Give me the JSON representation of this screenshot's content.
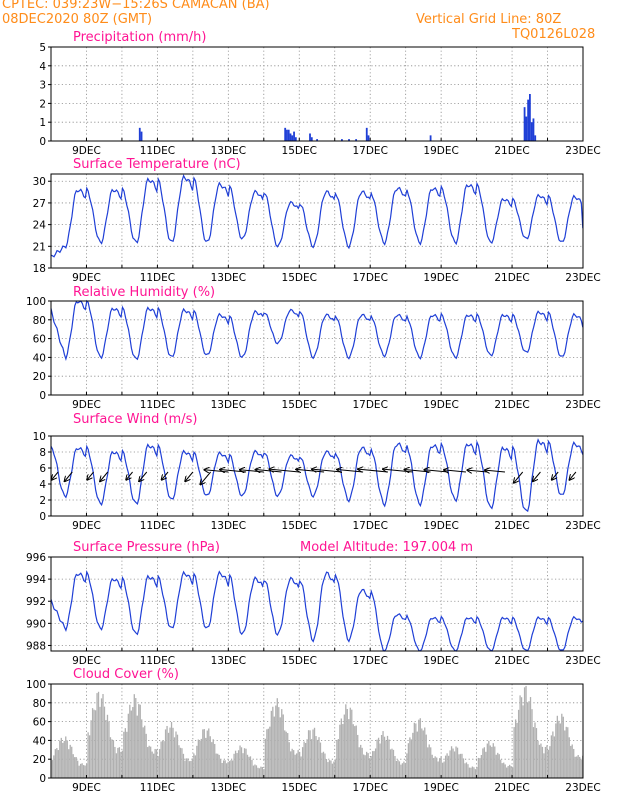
{
  "header": {
    "line1_left": "CPTEC:    039:23W−15:26S    CAMACAN (BA)",
    "line2_left": "08DEC2020 80Z (GMT)",
    "line1_right": "Vertical Grid Line: 80Z",
    "line2_right": "TQ0126L028"
  },
  "colors": {
    "header": "#ff8c1a",
    "panel_title": "#ff1493",
    "series": "#1f3fd6",
    "cloud": "#b0b0b0",
    "wind_arrow": "#000000"
  },
  "x_axis": {
    "labels": [
      "9DEC",
      "11DEC",
      "13DEC",
      "15DEC",
      "17DEC",
      "19DEC",
      "21DEC",
      "23DEC"
    ],
    "label_days": [
      9,
      11,
      13,
      15,
      17,
      19,
      21,
      23
    ],
    "range_days": [
      8,
      23
    ],
    "grid_every_days": 1
  },
  "chart_data": [
    {
      "type": "bar",
      "title": "Precipitation (mm/h)",
      "ylim": [
        0,
        5
      ],
      "yticks": [
        0,
        1,
        2,
        3,
        4,
        5
      ],
      "x": [
        10.5,
        10.55,
        14.6,
        14.65,
        14.7,
        14.75,
        14.8,
        14.85,
        14.9,
        15.3,
        15.35,
        15.5,
        16.2,
        16.4,
        16.6,
        16.9,
        16.95,
        18.7,
        21.35,
        21.4,
        21.45,
        21.5,
        21.55,
        21.6,
        21.65
      ],
      "values": [
        0.7,
        0.5,
        0.7,
        0.6,
        0.6,
        0.4,
        0.3,
        0.5,
        0.2,
        0.4,
        0.2,
        0.1,
        0.1,
        0.1,
        0.1,
        0.7,
        0.3,
        0.3,
        1.8,
        1.3,
        2.2,
        2.5,
        1.0,
        1.2,
        0.3
      ]
    },
    {
      "type": "line",
      "title": "Surface Temperature (nC)",
      "ylim": [
        18,
        31
      ],
      "yticks": [
        18,
        21,
        24,
        27,
        30
      ],
      "daily_min": [
        21.0,
        21.5,
        21.5,
        21.5,
        21.5,
        22.0,
        21.0,
        21.0,
        21.0,
        21.5,
        21.5,
        21.5,
        21.5,
        22.0,
        21.5
      ],
      "daily_max": [
        28.8,
        28.8,
        30.2,
        30.5,
        29.5,
        28.5,
        27.0,
        28.5,
        28.5,
        29.0,
        29.0,
        29.5,
        27.5,
        28.0,
        27.8
      ],
      "start_value": 19.5,
      "end_value": 23.5
    },
    {
      "type": "line",
      "title": "Relative Humidity (%)",
      "ylim": [
        0,
        100
      ],
      "yticks": [
        0,
        20,
        40,
        60,
        80,
        100
      ],
      "daily_min": [
        40,
        40,
        38,
        40,
        42,
        40,
        55,
        40,
        40,
        42,
        40,
        40,
        42,
        45,
        40
      ],
      "daily_max": [
        100,
        92,
        92,
        90,
        85,
        88,
        90,
        85,
        85,
        85,
        85,
        85,
        85,
        88,
        85
      ],
      "start_value": 90,
      "end_value": 72
    },
    {
      "type": "line",
      "title": "Surface Wind (m/s)",
      "ylim": [
        0,
        10
      ],
      "yticks": [
        0,
        2,
        4,
        6,
        8,
        10
      ],
      "daily_min": [
        2.5,
        1.5,
        1.5,
        2.0,
        2.5,
        2.5,
        2.5,
        2.5,
        2.0,
        1.5,
        1.5,
        2.0,
        1.0,
        0.5,
        2.5
      ],
      "daily_max": [
        8.5,
        8.0,
        8.8,
        8.0,
        7.8,
        8.0,
        7.5,
        8.0,
        8.5,
        9.0,
        8.8,
        9.0,
        8.5,
        9.3,
        9.0
      ],
      "arrows": [
        {
          "day": 8.2,
          "dir": "sw",
          "len": 10
        },
        {
          "day": 8.6,
          "dir": "sw",
          "len": 12
        },
        {
          "day": 9.2,
          "dir": "sw",
          "len": 10
        },
        {
          "day": 9.6,
          "dir": "sw",
          "len": 12
        },
        {
          "day": 10.3,
          "dir": "sw",
          "len": 10
        },
        {
          "day": 10.7,
          "dir": "sw",
          "len": 12
        },
        {
          "day": 11.3,
          "dir": "sw",
          "len": 10
        },
        {
          "day": 12.0,
          "dir": "sw",
          "len": 12
        },
        {
          "day": 12.5,
          "dir": "sw",
          "len": 16
        },
        {
          "day": 13.0,
          "dir": "w",
          "len": 24
        },
        {
          "day": 13.5,
          "dir": "w",
          "len": 26
        },
        {
          "day": 14.0,
          "dir": "w",
          "len": 24
        },
        {
          "day": 14.5,
          "dir": "w",
          "len": 26
        },
        {
          "day": 15.0,
          "dir": "w",
          "len": 30
        },
        {
          "day": 15.7,
          "dir": "w",
          "len": 28
        },
        {
          "day": 16.2,
          "dir": "w",
          "len": 30
        },
        {
          "day": 16.8,
          "dir": "w",
          "len": 26
        },
        {
          "day": 17.5,
          "dir": "w",
          "len": 30
        },
        {
          "day": 18.2,
          "dir": "w",
          "len": 30
        },
        {
          "day": 18.7,
          "dir": "w",
          "len": 26
        },
        {
          "day": 19.2,
          "dir": "w",
          "len": 24
        },
        {
          "day": 19.7,
          "dir": "w",
          "len": 22
        },
        {
          "day": 20.3,
          "dir": "w",
          "len": 20
        },
        {
          "day": 20.8,
          "dir": "w",
          "len": 20
        },
        {
          "day": 21.3,
          "dir": "sw",
          "len": 14
        },
        {
          "day": 21.8,
          "dir": "sw",
          "len": 12
        },
        {
          "day": 22.3,
          "dir": "sw",
          "len": 10
        },
        {
          "day": 22.8,
          "dir": "sw",
          "len": 10
        }
      ]
    },
    {
      "type": "line",
      "title": "Surface Pressure (hPa)",
      "annotation": "Model Altitude: 197.004 m",
      "ylim": [
        987.5,
        996
      ],
      "yticks": [
        988,
        990,
        992,
        994,
        996
      ],
      "daily_min": [
        989.5,
        989.5,
        989.0,
        989.5,
        989.5,
        989.0,
        989.0,
        988.5,
        988.5,
        987.5,
        987.5,
        987.5,
        987.5,
        987.5,
        987.5
      ],
      "daily_max": [
        994.5,
        994.0,
        994.2,
        994.5,
        994.5,
        994.0,
        994.0,
        994.5,
        993.0,
        990.8,
        990.5,
        990.5,
        990.5,
        990.5,
        990.5
      ],
      "start_value": 992.0,
      "end_value": 990.2
    },
    {
      "type": "area",
      "title": "Cloud Cover (%)",
      "ylim": [
        0,
        100
      ],
      "yticks": [
        0,
        20,
        40,
        60,
        80,
        100
      ],
      "daily_max": [
        45,
        95,
        90,
        60,
        55,
        35,
        85,
        55,
        80,
        50,
        65,
        35,
        40,
        100,
        70
      ]
    }
  ]
}
